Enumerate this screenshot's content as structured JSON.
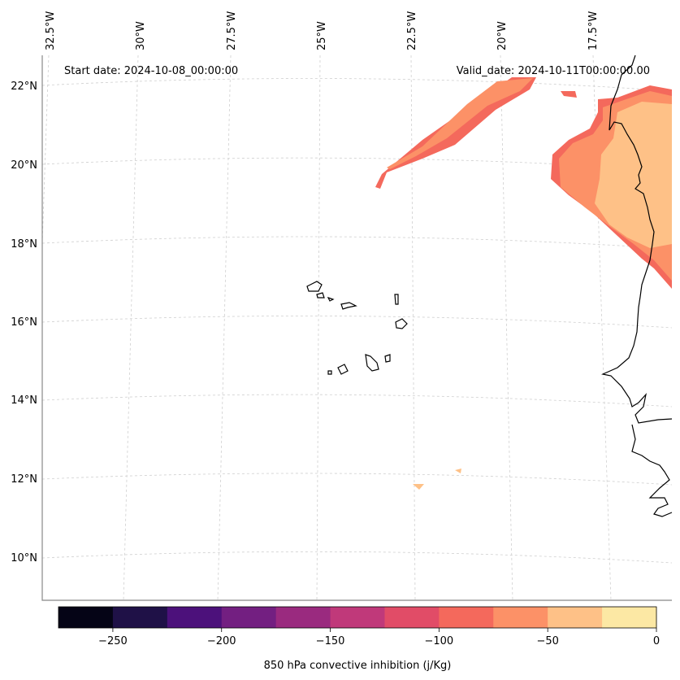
{
  "map": {
    "start_label": "Start date: 2024-10-08_00:00:00",
    "valid_label": "Valid_date: 2024-10-11T00:00:00.00",
    "lon_labels": [
      "32.5°W",
      "30°W",
      "27.5°W",
      "25°W",
      "22.5°W",
      "20°W",
      "17.5°W"
    ],
    "lat_labels": [
      "22°N",
      "20°N",
      "18°N",
      "16°N",
      "14°N",
      "12°N",
      "10°N"
    ]
  },
  "colorbar": {
    "label": "850 hPa convective inhibition (j/Kg)",
    "tick_labels": [
      "−250",
      "−200",
      "−150",
      "−100",
      "−50",
      "0"
    ],
    "tick_values": [
      -250,
      -200,
      -150,
      -100,
      -50,
      0
    ],
    "range": [
      -275,
      0
    ],
    "colors": [
      "#050416",
      "#1f1147",
      "#4c117b",
      "#731f81",
      "#9a2a7f",
      "#c0397a",
      "#e14c67",
      "#f4695c",
      "#fc9167",
      "#fec187",
      "#fce8a4"
    ]
  },
  "fill_colors": {
    "inner": "#fec187",
    "mid": "#fc9167",
    "outer": "#f4695c"
  }
}
